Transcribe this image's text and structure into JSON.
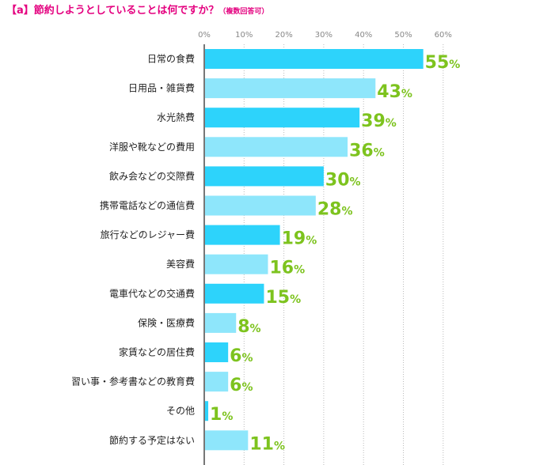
{
  "title": {
    "main": "【a】節約しようとしていることは何ですか？",
    "note": "（複数回答可）"
  },
  "colors": {
    "title": "#e4007f",
    "bar_dark": "#2dd3fb",
    "bar_light": "#8ee6fb",
    "value": "#7dc31e",
    "axis": "#777777",
    "grid": "#bbbbbb"
  },
  "chart_data": {
    "type": "bar",
    "orientation": "horizontal",
    "title": "【a】節約しようとしていることは何ですか？（複数回答可）",
    "categories": [
      "日常の食費",
      "日用品・雑貨費",
      "水光熱費",
      "洋服や靴などの費用",
      "飲み会などの交際費",
      "携帯電話などの通信費",
      "旅行などのレジャー費",
      "美容費",
      "電車代などの交通費",
      "保険・医療費",
      "家賃などの居住費",
      "習い事・参考書などの教育費",
      "その他",
      "節約する予定はない"
    ],
    "values": [
      55,
      43,
      39,
      36,
      30,
      28,
      19,
      16,
      15,
      8,
      6,
      6,
      1,
      11
    ],
    "value_unit": "%",
    "xticks": [
      "0%",
      "10%",
      "20%",
      "30%",
      "40%",
      "50%",
      "60%"
    ],
    "xlim": [
      0,
      60
    ],
    "grid": true,
    "grid_style": "dotted vertical",
    "legend": "none"
  }
}
